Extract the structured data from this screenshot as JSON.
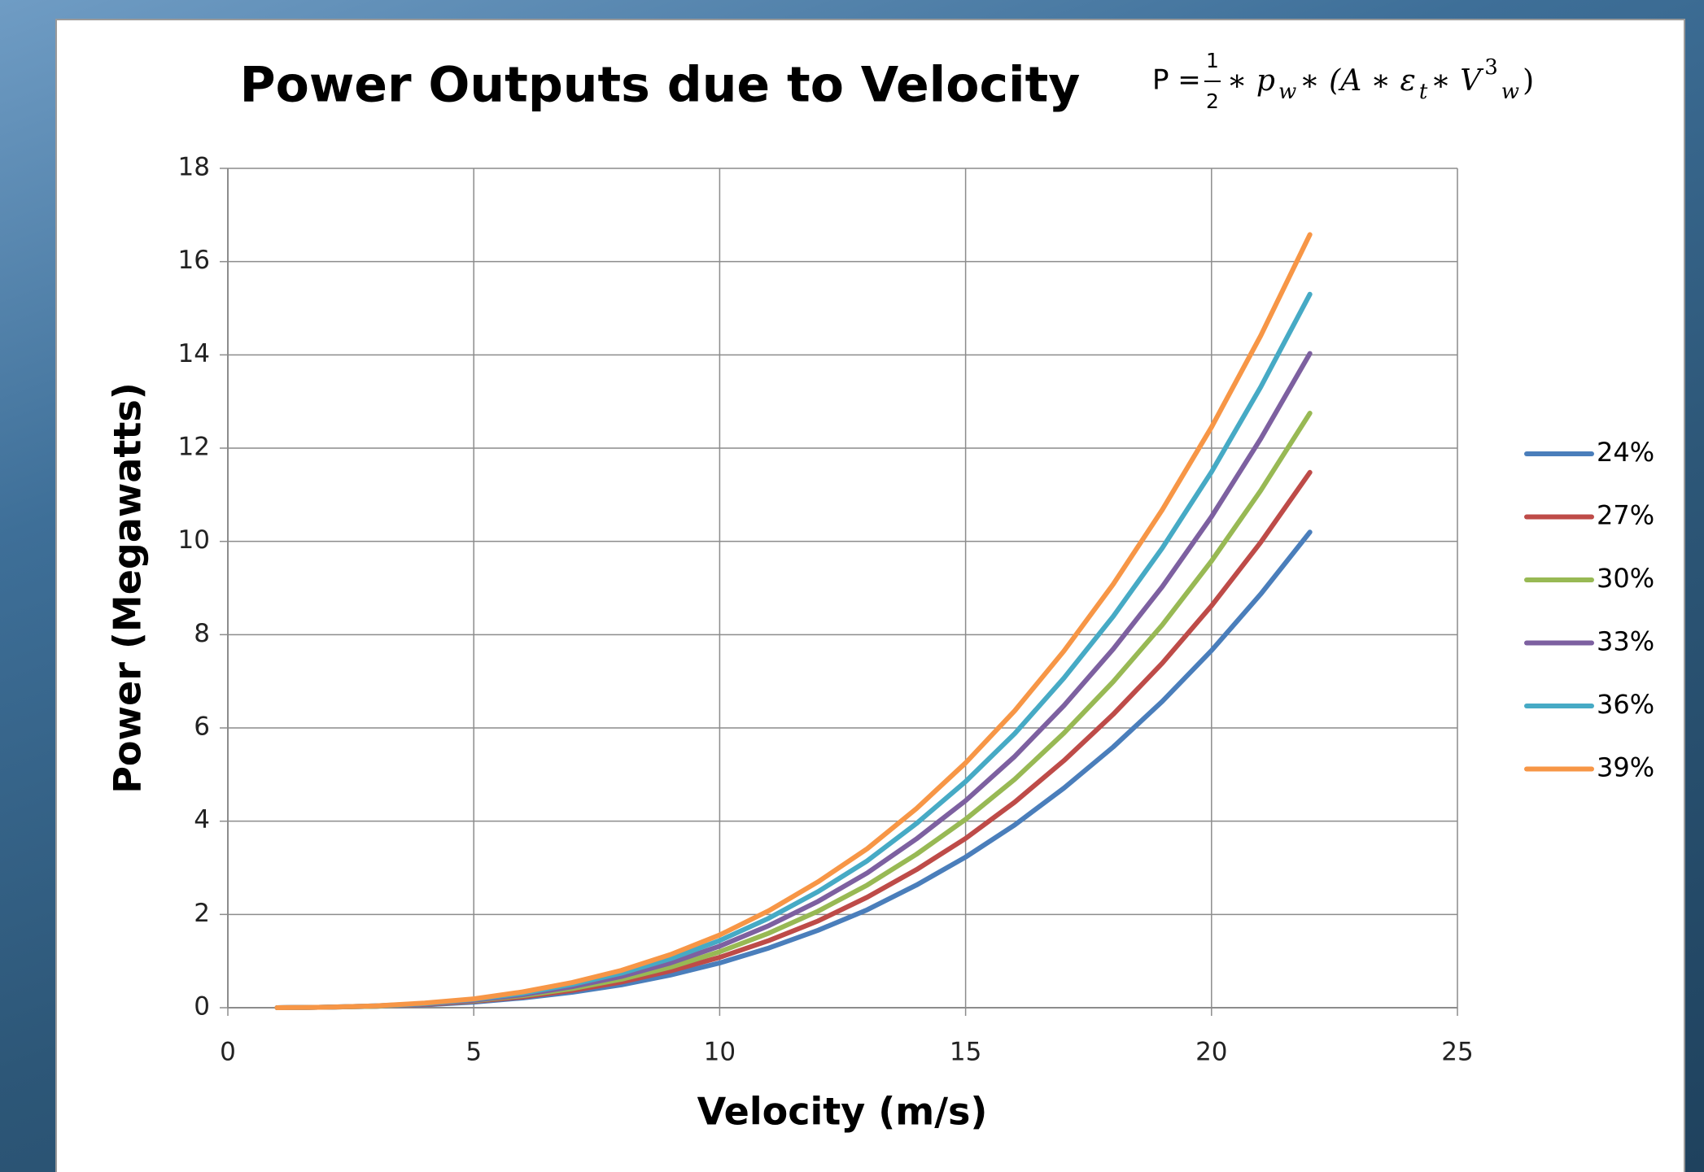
{
  "chart_data": {
    "type": "line",
    "title": "Power Outputs due to Velocity",
    "formula": [
      "P =",
      "1",
      "2",
      "∗ p",
      "w",
      "∗ (A ∗ ε",
      "t",
      "∗ V",
      "3",
      "w",
      ")"
    ],
    "x_label": "Velocity (m/s)",
    "y_label": "Power (Megawatts)",
    "x": [
      1,
      2,
      3,
      4,
      5,
      6,
      7,
      8,
      9,
      10,
      11,
      12,
      13,
      14,
      15,
      16,
      17,
      18,
      19,
      20,
      21,
      22
    ],
    "series": [
      {
        "name": "24%",
        "color": "#4a7ebb",
        "values": [
          0.0,
          0.01,
          0.03,
          0.06,
          0.12,
          0.21,
          0.33,
          0.49,
          0.7,
          0.96,
          1.28,
          1.66,
          2.1,
          2.63,
          3.23,
          3.92,
          4.71,
          5.59,
          6.57,
          7.66,
          8.87,
          10.2
        ]
      },
      {
        "name": "27%",
        "color": "#be4b48",
        "values": [
          0.0,
          0.01,
          0.03,
          0.07,
          0.14,
          0.23,
          0.37,
          0.55,
          0.79,
          1.08,
          1.44,
          1.86,
          2.37,
          2.96,
          3.63,
          4.41,
          5.3,
          6.29,
          7.39,
          8.62,
          9.98,
          11.48
        ]
      },
      {
        "name": "30%",
        "color": "#98b954",
        "values": [
          0.0,
          0.01,
          0.03,
          0.08,
          0.15,
          0.26,
          0.41,
          0.61,
          0.87,
          1.2,
          1.6,
          2.07,
          2.63,
          3.29,
          4.04,
          4.9,
          5.89,
          6.99,
          8.21,
          9.58,
          11.09,
          12.75
        ]
      },
      {
        "name": "33%",
        "color": "#7d60a0",
        "values": [
          0.0,
          0.01,
          0.04,
          0.08,
          0.16,
          0.28,
          0.45,
          0.67,
          0.96,
          1.32,
          1.76,
          2.28,
          2.89,
          3.62,
          4.44,
          5.39,
          6.48,
          7.69,
          9.03,
          10.53,
          12.2,
          14.03
        ]
      },
      {
        "name": "36%",
        "color": "#46aac5",
        "values": [
          0.0,
          0.01,
          0.04,
          0.09,
          0.18,
          0.31,
          0.5,
          0.74,
          1.05,
          1.44,
          1.92,
          2.49,
          3.15,
          3.95,
          4.85,
          5.88,
          7.07,
          8.39,
          9.86,
          11.49,
          13.31,
          15.3
        ]
      },
      {
        "name": "39%",
        "color": "#f79646",
        "values": [
          0.0,
          0.01,
          0.04,
          0.1,
          0.19,
          0.34,
          0.54,
          0.8,
          1.14,
          1.56,
          2.08,
          2.7,
          3.41,
          4.27,
          5.25,
          6.37,
          7.65,
          9.08,
          10.68,
          12.45,
          14.41,
          16.58
        ]
      }
    ],
    "xlim": [
      0,
      25
    ],
    "xticks": [
      0,
      5,
      10,
      15,
      20,
      25
    ],
    "ylim": [
      0,
      18
    ],
    "yticks": [
      0,
      2,
      4,
      6,
      8,
      10,
      12,
      14,
      16,
      18
    ],
    "grid": true,
    "legend": "right"
  }
}
